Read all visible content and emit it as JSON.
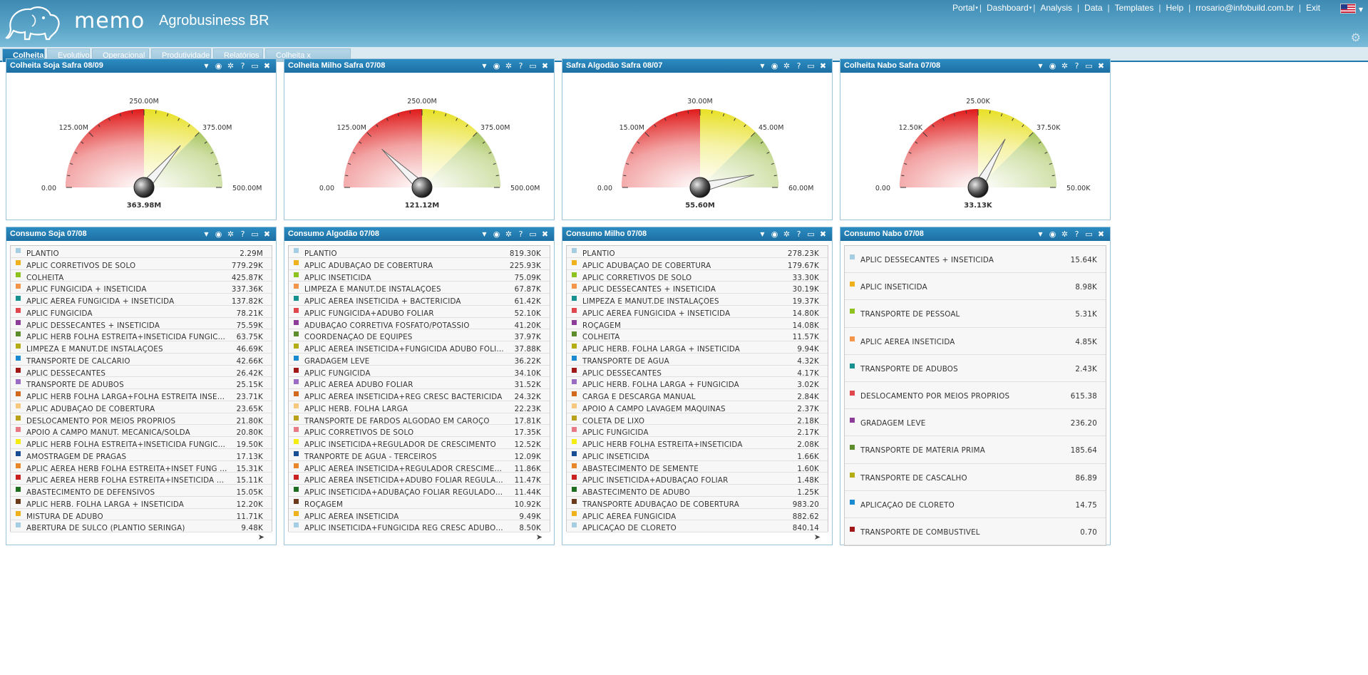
{
  "app": {
    "brand": "memo",
    "company": "Agrobusiness BR",
    "nav": [
      {
        "label": "Portal",
        "dropdown": true
      },
      {
        "label": "Dashboard",
        "dropdown": true
      },
      {
        "label": "Analysis",
        "dropdown": false
      },
      {
        "label": "Data",
        "dropdown": false
      },
      {
        "label": "Templates",
        "dropdown": false
      },
      {
        "label": "Help",
        "dropdown": false
      },
      {
        "label": "rrosario@infobuild.com.br",
        "dropdown": false
      },
      {
        "label": "Exit",
        "dropdown": false
      }
    ]
  },
  "tabs": [
    {
      "label": "Colheita",
      "active": true
    },
    {
      "label": "Evolutivo",
      "active": false
    },
    {
      "label": "Operacional",
      "active": false
    },
    {
      "label": "Produtividade",
      "active": false
    },
    {
      "label": "Relatórios",
      "active": false
    },
    {
      "label": "Colheita x Despesas",
      "active": false
    }
  ],
  "colors": {
    "header": "#4d9bc2",
    "panel_header": "#1f79ad",
    "gauge_red": "#e01a1a",
    "gauge_yellow": "#e8e024",
    "gauge_green": "#88b021"
  },
  "gauges": [
    {
      "title": "Colheita Soja Safra 08/09",
      "labels": [
        "0.00",
        "125.00M",
        "250.00M",
        "375.00M",
        "500.00M"
      ],
      "max": 500,
      "value": 363.98,
      "value_label": "363.98M"
    },
    {
      "title": "Colheita Milho Safra 07/08",
      "labels": [
        "0.00",
        "125.00M",
        "250.00M",
        "375.00M",
        "500.00M"
      ],
      "max": 500,
      "value": 121.12,
      "value_label": "121.12M"
    },
    {
      "title": "Safra Algodão Safra 08/07",
      "labels": [
        "0.00",
        "15.00M",
        "30.00M",
        "45.00M",
        "60.00M"
      ],
      "max": 60,
      "value": 55.6,
      "value_label": "55.60M"
    },
    {
      "title": "Colheita Nabo Safra 07/08",
      "labels": [
        "0.00",
        "12.50K",
        "25.00K",
        "37.50K",
        "50.00K"
      ],
      "max": 50,
      "value": 33.13,
      "value_label": "33.13K"
    }
  ],
  "lists": [
    {
      "title": "Consumo Soja 07/08",
      "pager": "➤",
      "rows": [
        {
          "label": "PLANTIO",
          "value": "2.29M",
          "color": "#a6cee3"
        },
        {
          "label": "APLIC CORRETIVOS DE SOLO",
          "value": "779.29K",
          "color": "#f0b21c"
        },
        {
          "label": "COLHEITA",
          "value": "425.87K",
          "color": "#8dc21f"
        },
        {
          "label": "APLIC FUNGICIDA + INSETICIDA",
          "value": "337.36K",
          "color": "#f5954a"
        },
        {
          "label": "APLIC AÉREA FUNGICIDA + INSETICIDA",
          "value": "137.82K",
          "color": "#17918f"
        },
        {
          "label": "APLIC FUNGICIDA",
          "value": "78.21K",
          "color": "#e0474c"
        },
        {
          "label": "APLIC DESSECANTES + INSETICIDA",
          "value": "75.59K",
          "color": "#8b3d97"
        },
        {
          "label": "APLIC HERB FOLHA ESTREITA+INSETICIDA FUNGICIDA ADUBO FOLIAR",
          "value": "63.75K",
          "color": "#5e8d2e"
        },
        {
          "label": "LIMPEZA E MANUT.DE INSTALAÇÕES",
          "value": "46.69K",
          "color": "#b5ad16"
        },
        {
          "label": "TRANSPORTE DE CALCÁRIO",
          "value": "42.66K",
          "color": "#1a8bd1"
        },
        {
          "label": "APLIC DESSECANTES",
          "value": "26.42K",
          "color": "#a01818"
        },
        {
          "label": "TRANSPORTE DE ADUBOS",
          "value": "25.15K",
          "color": "#9a6cc4"
        },
        {
          "label": "APLIC HERB FOLHA LARGA+FOLHA ESTREITA INSETICIDA",
          "value": "23.71K",
          "color": "#d2691e"
        },
        {
          "label": "APLIC ADUBAÇÃO DE COBERTURA",
          "value": "23.65K",
          "color": "#f7c97e"
        },
        {
          "label": "DESLOCAMENTO POR MEIOS PROPRIOS",
          "value": "21.80K",
          "color": "#b9a21a"
        },
        {
          "label": "APOIO À CAMPO MANUT. MECÂNICA/SOLDA",
          "value": "20.80K",
          "color": "#e87a86"
        },
        {
          "label": "APLIC HERB FOLHA ESTREITA+INSETICIDA FUNGICIDA",
          "value": "19.50K",
          "color": "#f5ec10"
        },
        {
          "label": "AMOSTRAGEM DE PRAGAS",
          "value": "17.13K",
          "color": "#1a4e94"
        },
        {
          "label": "APLIC AÉREA HERB FOLHA ESTREITA+INSET FUNG ADUBO FOLIAR",
          "value": "15.31K",
          "color": "#e8862a"
        },
        {
          "label": "APLIC AÉREA HERB FOLHA ESTREITA+INSETICIDA FUNGICIDA",
          "value": "15.11K",
          "color": "#c92020"
        },
        {
          "label": "ABASTECIMENTO DE DEFENSIVOS",
          "value": "15.05K",
          "color": "#1f6e1f"
        },
        {
          "label": "APLIC HERB. FOLHA LARGA + INSETICIDA",
          "value": "12.20K",
          "color": "#6b3a1a"
        },
        {
          "label": "MISTURA DE ADUBO",
          "value": "11.71K",
          "color": "#f0b21c"
        },
        {
          "label": "ABERTURA DE SULCO (PLANTIO SERINGA)",
          "value": "9.48K",
          "color": "#a6cee3"
        }
      ]
    },
    {
      "title": "Consumo Algodão 07/08",
      "pager": "➤",
      "rows": [
        {
          "label": "PLANTIO",
          "value": "819.30K",
          "color": "#a6cee3"
        },
        {
          "label": "APLIC ADUBAÇÃO DE COBERTURA",
          "value": "225.93K",
          "color": "#f0b21c"
        },
        {
          "label": "APLIC INSETICIDA",
          "value": "75.09K",
          "color": "#8dc21f"
        },
        {
          "label": "LIMPEZA E MANUT.DE INSTALAÇÕES",
          "value": "67.87K",
          "color": "#f5954a"
        },
        {
          "label": "APLIC AÉREA INSETICIDA + BACTERICIDA",
          "value": "61.42K",
          "color": "#17918f"
        },
        {
          "label": "APLIC FUNGICIDA+ADUBO FOLIAR",
          "value": "52.10K",
          "color": "#e0474c"
        },
        {
          "label": "ADUBAÇÃO CORRETIVA FOSFATO/POTASSIO",
          "value": "41.20K",
          "color": "#8b3d97"
        },
        {
          "label": "COORDENAÇÃO DE EQUIPES",
          "value": "37.97K",
          "color": "#5e8d2e"
        },
        {
          "label": "APLIC AÉREA INSETICIDA+FUNGICIDA ADUBO FOLIAR",
          "value": "37.88K",
          "color": "#b5ad16"
        },
        {
          "label": "GRADAGEM LEVE",
          "value": "36.22K",
          "color": "#1a8bd1"
        },
        {
          "label": "APLIC FUNGICIDA",
          "value": "34.10K",
          "color": "#a01818"
        },
        {
          "label": "APLIC AÉREA ADUBO FOLIAR",
          "value": "31.52K",
          "color": "#9a6cc4"
        },
        {
          "label": "APLIC AÉREA INSETICIDA+REG CRESC BACTERICIDA",
          "value": "24.32K",
          "color": "#d2691e"
        },
        {
          "label": "APLIC HERB. FOLHA LARGA",
          "value": "22.23K",
          "color": "#f7c97e"
        },
        {
          "label": "TRANSPORTE DE FARDOS ALGODÃO EM CAROÇO",
          "value": "17.81K",
          "color": "#b9a21a"
        },
        {
          "label": "APLIC CORRETIVOS DE SOLO",
          "value": "17.35K",
          "color": "#e87a86"
        },
        {
          "label": "APLIC INSETICIDA+REGULADOR DE CRESCIMENTO",
          "value": "12.52K",
          "color": "#f5ec10"
        },
        {
          "label": "TRANPORTE DE AGUA - TERCEIROS",
          "value": "12.09K",
          "color": "#1a4e94"
        },
        {
          "label": "APLIC AÉREA INSETICIDA+REGULADOR CRESCIMENTO",
          "value": "11.86K",
          "color": "#e8862a"
        },
        {
          "label": "APLIC AÉREA INSETICIDA+ADUBO FOLIAR REGULADOR CRESCIMENTO",
          "value": "11.47K",
          "color": "#c92020"
        },
        {
          "label": "APLIC INSETICIDA+ADUBAÇÃO FOLIAR REGULADOR CRESCIMENTO",
          "value": "11.44K",
          "color": "#1f6e1f"
        },
        {
          "label": "ROÇAGEM",
          "value": "10.92K",
          "color": "#6b3a1a"
        },
        {
          "label": "APLIC AÉREA INSETICIDA",
          "value": "9.49K",
          "color": "#f0b21c"
        },
        {
          "label": "APLIC INSETICIDA+FUNGICIDA REG CRESC ADUBO FOLIAR",
          "value": "8.50K",
          "color": "#a6cee3"
        }
      ]
    },
    {
      "title": "Consumo Milho 07/08",
      "pager": "➤",
      "rows": [
        {
          "label": "PLANTIO",
          "value": "278.23K",
          "color": "#a6cee3"
        },
        {
          "label": "APLIC ADUBAÇÃO DE COBERTURA",
          "value": "179.67K",
          "color": "#f0b21c"
        },
        {
          "label": "APLIC CORRETIVOS DE SOLO",
          "value": "33.30K",
          "color": "#8dc21f"
        },
        {
          "label": "APLIC DESSECANTES + INSETICIDA",
          "value": "30.19K",
          "color": "#f5954a"
        },
        {
          "label": "LIMPEZA E MANUT.DE INSTALAÇÕES",
          "value": "19.37K",
          "color": "#17918f"
        },
        {
          "label": "APLIC AÉREA FUNGICIDA + INSETICIDA",
          "value": "14.80K",
          "color": "#e0474c"
        },
        {
          "label": "ROÇAGEM",
          "value": "14.08K",
          "color": "#8b3d97"
        },
        {
          "label": "COLHEITA",
          "value": "11.57K",
          "color": "#5e8d2e"
        },
        {
          "label": "APLIC HERB. FOLHA LARGA + INSETICIDA",
          "value": "9.94K",
          "color": "#b5ad16"
        },
        {
          "label": "TRANSPORTE DE ÁGUA",
          "value": "4.32K",
          "color": "#1a8bd1"
        },
        {
          "label": "APLIC DESSECANTES",
          "value": "4.17K",
          "color": "#a01818"
        },
        {
          "label": "APLIC HERB. FOLHA LARGA + FUNGICIDA",
          "value": "3.02K",
          "color": "#9a6cc4"
        },
        {
          "label": "CARGA E DESCARGA MANUAL",
          "value": "2.84K",
          "color": "#d2691e"
        },
        {
          "label": "APOIO À CAMPO LAVAGEM MÁQUINAS",
          "value": "2.37K",
          "color": "#f7c97e"
        },
        {
          "label": "COLETA DE LIXO",
          "value": "2.18K",
          "color": "#b9a21a"
        },
        {
          "label": "APLIC FUNGICIDA",
          "value": "2.17K",
          "color": "#e87a86"
        },
        {
          "label": "APLIC HERB FOLHA ESTREITA+INSETICIDA",
          "value": "2.08K",
          "color": "#f5ec10"
        },
        {
          "label": "APLIC INSETICIDA",
          "value": "1.66K",
          "color": "#1a4e94"
        },
        {
          "label": "ABASTECIMENTO DE SEMENTE",
          "value": "1.60K",
          "color": "#e8862a"
        },
        {
          "label": "APLIC INSETICIDA+ADUBAÇÃO FOLIAR",
          "value": "1.48K",
          "color": "#c92020"
        },
        {
          "label": "ABASTECIMENTO DE ADUBO",
          "value": "1.25K",
          "color": "#1f6e1f"
        },
        {
          "label": "TRANSPORTE ADUBAÇÃO DE COBERTURA",
          "value": "983.20",
          "color": "#6b3a1a"
        },
        {
          "label": "APLIC AÉREA FUNGICIDA",
          "value": "882.62",
          "color": "#f0b21c"
        },
        {
          "label": "APLICAÇÃO DE CLORETO",
          "value": "840.14",
          "color": "#a6cee3"
        }
      ]
    },
    {
      "title": "Consumo Nabo 07/08",
      "pager": "",
      "rows": [
        {
          "label": "APLIC DESSECANTES + INSETICIDA",
          "value": "15.64K",
          "color": "#a6cee3"
        },
        {
          "label": "APLIC INSETICIDA",
          "value": "8.98K",
          "color": "#f0b21c"
        },
        {
          "label": "TRANSPORTE DE PESSOAL",
          "value": "5.31K",
          "color": "#8dc21f"
        },
        {
          "label": "APLIC AÉREA INSETICIDA",
          "value": "4.85K",
          "color": "#f5954a"
        },
        {
          "label": "TRANSPORTE DE ADUBOS",
          "value": "2.43K",
          "color": "#17918f"
        },
        {
          "label": "DESLOCAMENTO POR MEIOS PROPRIOS",
          "value": "615.38",
          "color": "#e0474c"
        },
        {
          "label": "GRADAGEM LEVE",
          "value": "236.20",
          "color": "#8b3d97"
        },
        {
          "label": "TRANSPORTE DE MATÉRIA PRIMA",
          "value": "185.64",
          "color": "#5e8d2e"
        },
        {
          "label": "TRANSPORTE DE CASCALHO",
          "value": "86.89",
          "color": "#b5ad16"
        },
        {
          "label": "APLICAÇÃO DE CLORETO",
          "value": "14.75",
          "color": "#1a8bd1"
        },
        {
          "label": "TRANSPORTE DE COMBUSTIVEL",
          "value": "0.70",
          "color": "#a01818"
        }
      ]
    }
  ],
  "panel_tools": [
    "filter-icon",
    "eye-icon",
    "gear-icon",
    "help-icon",
    "maximize-icon",
    "close-icon"
  ]
}
